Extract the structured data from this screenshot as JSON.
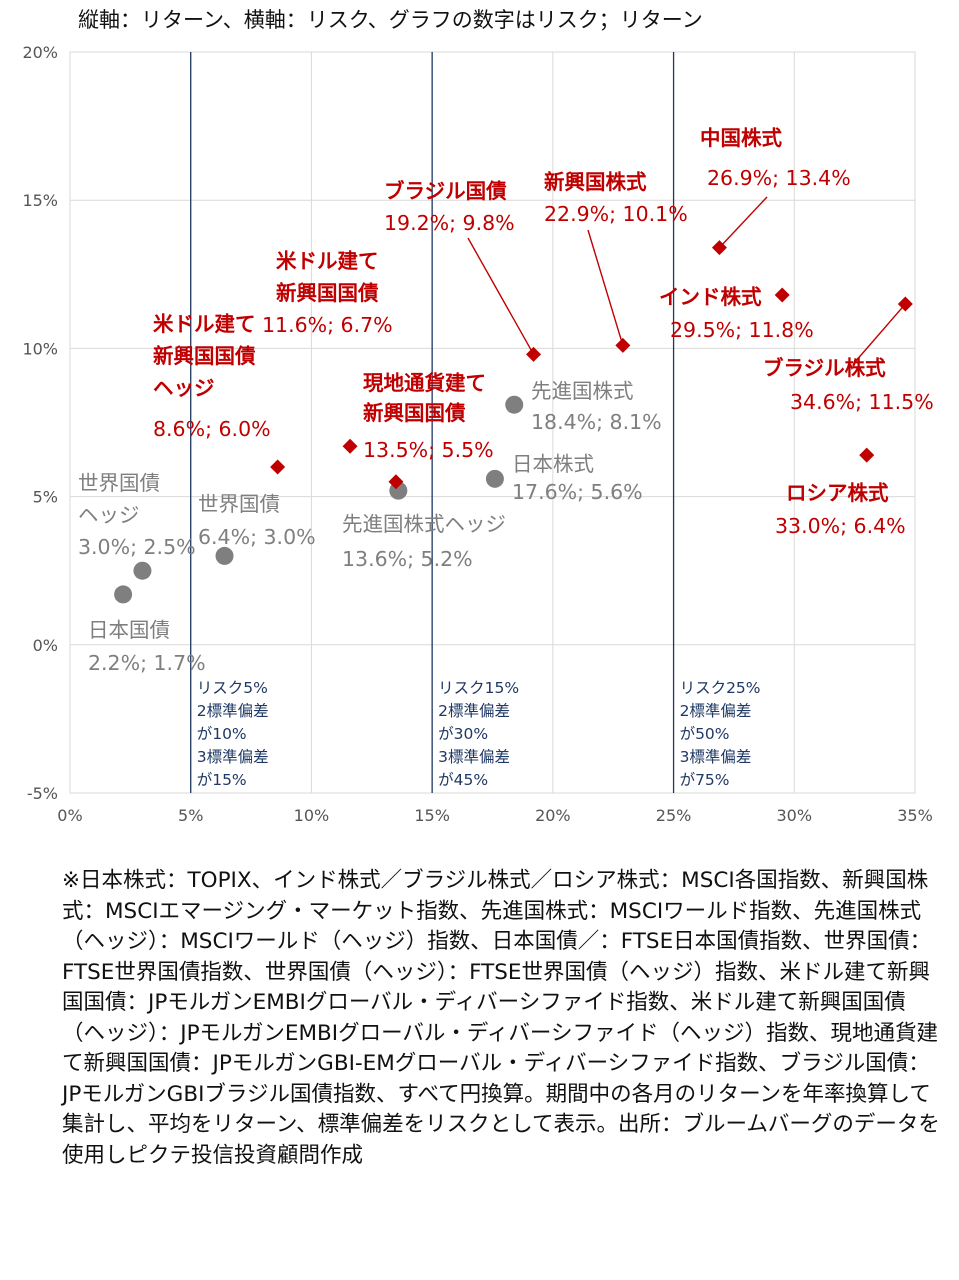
{
  "header": {
    "title": "縦軸：リターン、横軸：リスク、グラフの数字はリスク；リターン"
  },
  "chart_data": {
    "type": "scatter",
    "xlabel": "",
    "ylabel": "",
    "xlim": [
      0,
      35
    ],
    "ylim": [
      -5,
      20
    ],
    "x_ticks": [
      "0%",
      "5%",
      "10%",
      "15%",
      "20%",
      "25%",
      "30%",
      "35%"
    ],
    "y_ticks": [
      "-5%",
      "0%",
      "5%",
      "10%",
      "15%",
      "20%"
    ],
    "grid": true,
    "series": [
      {
        "color": "#7f7f7f",
        "marker": "circle",
        "points": [
          {
            "label": [
              "日本国債"
            ],
            "value": "2.2%; 1.7%",
            "x": 2.2,
            "y": 1.7
          },
          {
            "label": [
              "世界国債",
              "ヘッジ"
            ],
            "value": "3.0%; 2.5%",
            "x": 3.0,
            "y": 2.5
          },
          {
            "label": [
              "世界国債"
            ],
            "value": "6.4%; 3.0%",
            "x": 6.4,
            "y": 3.0
          },
          {
            "label": [
              "先進国株式ヘッジ"
            ],
            "value": "13.6%; 5.2%",
            "x": 13.6,
            "y": 5.2
          },
          {
            "label": [
              "日本株式"
            ],
            "value": "17.6%; 5.6%",
            "x": 17.6,
            "y": 5.6
          },
          {
            "label": [
              "先進国株式"
            ],
            "value": "18.4%; 8.1%",
            "x": 18.4,
            "y": 8.1
          }
        ]
      },
      {
        "color": "#c00000",
        "marker": "diamond",
        "points": [
          {
            "label": [
              "米ドル建て",
              "新興国国債",
              "ヘッジ"
            ],
            "value": "8.6%; 6.0%",
            "x": 8.6,
            "y": 6.0
          },
          {
            "label": [
              "米ドル建て",
              "新興国国債"
            ],
            "value": "11.6%; 6.7%",
            "x": 11.6,
            "y": 6.7
          },
          {
            "label": [
              "現地通貨建て",
              "新興国国債"
            ],
            "value": "13.5%; 5.5%",
            "x": 13.5,
            "y": 5.5
          },
          {
            "label": [
              "ブラジル国債"
            ],
            "value": "19.2%; 9.8%",
            "x": 19.2,
            "y": 9.8
          },
          {
            "label": [
              "新興国株式"
            ],
            "value": "22.9%; 10.1%",
            "x": 22.9,
            "y": 10.1
          },
          {
            "label": [
              "中国株式"
            ],
            "value": "26.9%; 13.4%",
            "x": 26.9,
            "y": 13.4
          },
          {
            "label": [
              "インド株式"
            ],
            "value": "29.5%; 11.8%",
            "x": 29.5,
            "y": 11.8
          },
          {
            "label": [
              "ロシア株式"
            ],
            "value": "33.0%; 6.4%",
            "x": 33.0,
            "y": 6.4
          },
          {
            "label": [
              "ブラジル株式"
            ],
            "value": "34.6%; 11.5%",
            "x": 34.6,
            "y": 11.5
          }
        ]
      }
    ],
    "reference_lines": [
      {
        "x": 5,
        "color": "#1f3864",
        "note": [
          "リスク5%",
          "2標準偏差",
          "が10%",
          "3標準偏差",
          "が15%"
        ]
      },
      {
        "x": 15,
        "color": "#1f3864",
        "note": [
          "リスク15%",
          "2標準偏差",
          "が30%",
          "3標準偏差",
          "が45%"
        ]
      },
      {
        "x": 25,
        "color": "#1f3864",
        "note": [
          "リスク25%",
          "2標準偏差",
          "が50%",
          "3標準偏差",
          "が75%"
        ]
      }
    ]
  },
  "footnote": "※日本株式：TOPIX、インド株式／ブラジル株式／ロシア株式：MSCI各国指数、新興国株式：MSCIエマージング・マーケット指数、先進国株式：MSCIワールド指数、先進国株式（ヘッジ）：MSCIワールド（ヘッジ）指数、日本国債／：FTSE日本国債指数、世界国債：FTSE世界国債指数、世界国債（ヘッジ）：FTSE世界国債（ヘッジ）指数、米ドル建て新興国国債：JPモルガンEMBIグローバル・ディバーシファイド指数、米ドル建て新興国国債（ヘッジ）：JPモルガンEMBIグローバル・ディバーシファイド（ヘッジ）指数、現地通貨建て新興国国債：JPモルガンGBI-EMグローバル・ディバーシファイド指数、ブラジル国債：JPモルガンGBIブラジル国債指数、すべて円換算。期間中の各月のリターンを年率換算して集計し、平均をリターン、標準偏差をリスクとして表示。出所：ブルームバーグのデータを使用しピクテ投信投資顧問作成"
}
